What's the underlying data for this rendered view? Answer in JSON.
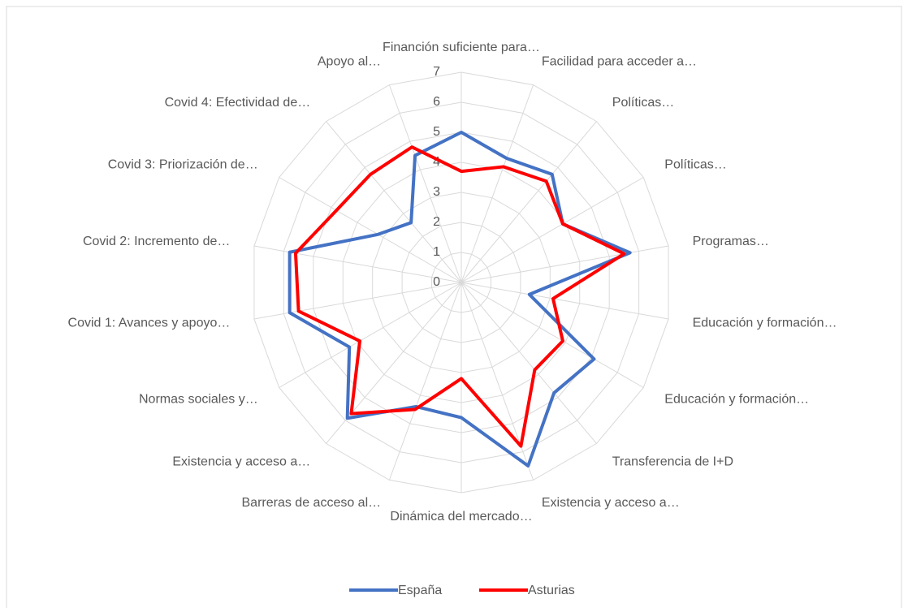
{
  "chart_data": {
    "type": "radar",
    "categories": [
      "Financión suficiente para…",
      "Facilidad para acceder a…",
      "Políticas…",
      "Políticas…",
      "Programas…",
      "Educación y formación…",
      "Educación y formación…",
      "Transferencia de I+D",
      "Existencia y acceso a…",
      "Dinámica del mercado…",
      "Barreras de acceso al…",
      "Existencia y acceso a…",
      "Normas sociales y…",
      "Covid 1: Avances y apoyo…",
      "Covid 2: Incremento de…",
      "Covid 3: Priorización de…",
      "Covid 4: Efectividad de…",
      "Apoyo al…"
    ],
    "series": [
      {
        "name": "España",
        "color": "#4472c4",
        "values": [
          5.0,
          4.4,
          4.7,
          3.9,
          5.7,
          2.3,
          5.1,
          4.8,
          6.5,
          4.5,
          4.4,
          5.9,
          4.3,
          5.8,
          5.8,
          3.2,
          2.6,
          4.5
        ]
      },
      {
        "name": "Asturias",
        "color": "#ff0000",
        "values": [
          3.7,
          4.1,
          4.4,
          3.9,
          5.5,
          3.1,
          3.9,
          3.8,
          5.8,
          3.2,
          4.5,
          5.7,
          3.9,
          5.5,
          5.6,
          4.8,
          4.7,
          4.8
        ]
      }
    ],
    "ylim": [
      0,
      7
    ],
    "yticks": [
      0,
      1,
      2,
      3,
      4,
      5,
      6,
      7
    ],
    "grid": true,
    "legend": "bottom"
  }
}
